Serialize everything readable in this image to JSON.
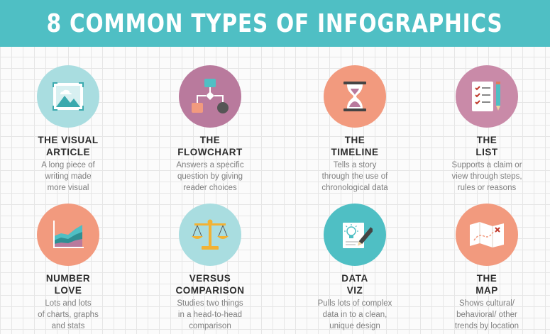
{
  "header": {
    "title": "8 COMMON TYPES OF INFOGRAPHICS"
  },
  "colors": {
    "banner": "#4fbfc4",
    "teal_light": "#a9dde0",
    "mauve": "#b97a9d",
    "salmon": "#f29a7e",
    "pink": "#c98aa8",
    "teal": "#4fbfc4"
  },
  "types": [
    {
      "icon": "image-icon",
      "circle_color": "#a9dde0",
      "title_line1": "THE VISUAL",
      "title_line2": "ARTICLE",
      "desc_line1": "A long piece of",
      "desc_line2": "writing made",
      "desc_line3": "more visual"
    },
    {
      "icon": "flowchart-icon",
      "circle_color": "#b97a9d",
      "title_line1": "THE",
      "title_line2": "FLOWCHART",
      "desc_line1": "Answers a specific",
      "desc_line2": "question by giving",
      "desc_line3": "reader choices"
    },
    {
      "icon": "hourglass-icon",
      "circle_color": "#f29a7e",
      "title_line1": "THE",
      "title_line2": "TIMELINE",
      "desc_line1": "Tells a story",
      "desc_line2": "through the use of",
      "desc_line3": "chronological data"
    },
    {
      "icon": "checklist-icon",
      "circle_color": "#c98aa8",
      "title_line1": "THE",
      "title_line2": "LIST",
      "desc_line1": "Supports a claim or",
      "desc_line2": "view through steps,",
      "desc_line3": "rules or reasons"
    },
    {
      "icon": "area-chart-icon",
      "circle_color": "#f29a7e",
      "title_line1": "NUMBER",
      "title_line2": "LOVE",
      "desc_line1": "Lots and lots",
      "desc_line2": "of charts, graphs",
      "desc_line3": "and stats"
    },
    {
      "icon": "scales-icon",
      "circle_color": "#a9dde0",
      "title_line1": "VERSUS",
      "title_line2": "COMPARISON",
      "desc_line1": "Studies two things",
      "desc_line2": "in a head-to-head",
      "desc_line3": "comparison"
    },
    {
      "icon": "lightbulb-sketch-icon",
      "circle_color": "#4fbfc4",
      "title_line1": "DATA",
      "title_line2": "VIZ",
      "desc_line1": "Pulls lots of complex",
      "desc_line2": "data in to a clean,",
      "desc_line3": "unique design"
    },
    {
      "icon": "map-icon",
      "circle_color": "#f29a7e",
      "title_line1": "THE",
      "title_line2": "MAP",
      "desc_line1": "Shows cultural/",
      "desc_line2": "behavioral/ other",
      "desc_line3": "trends by location"
    }
  ]
}
